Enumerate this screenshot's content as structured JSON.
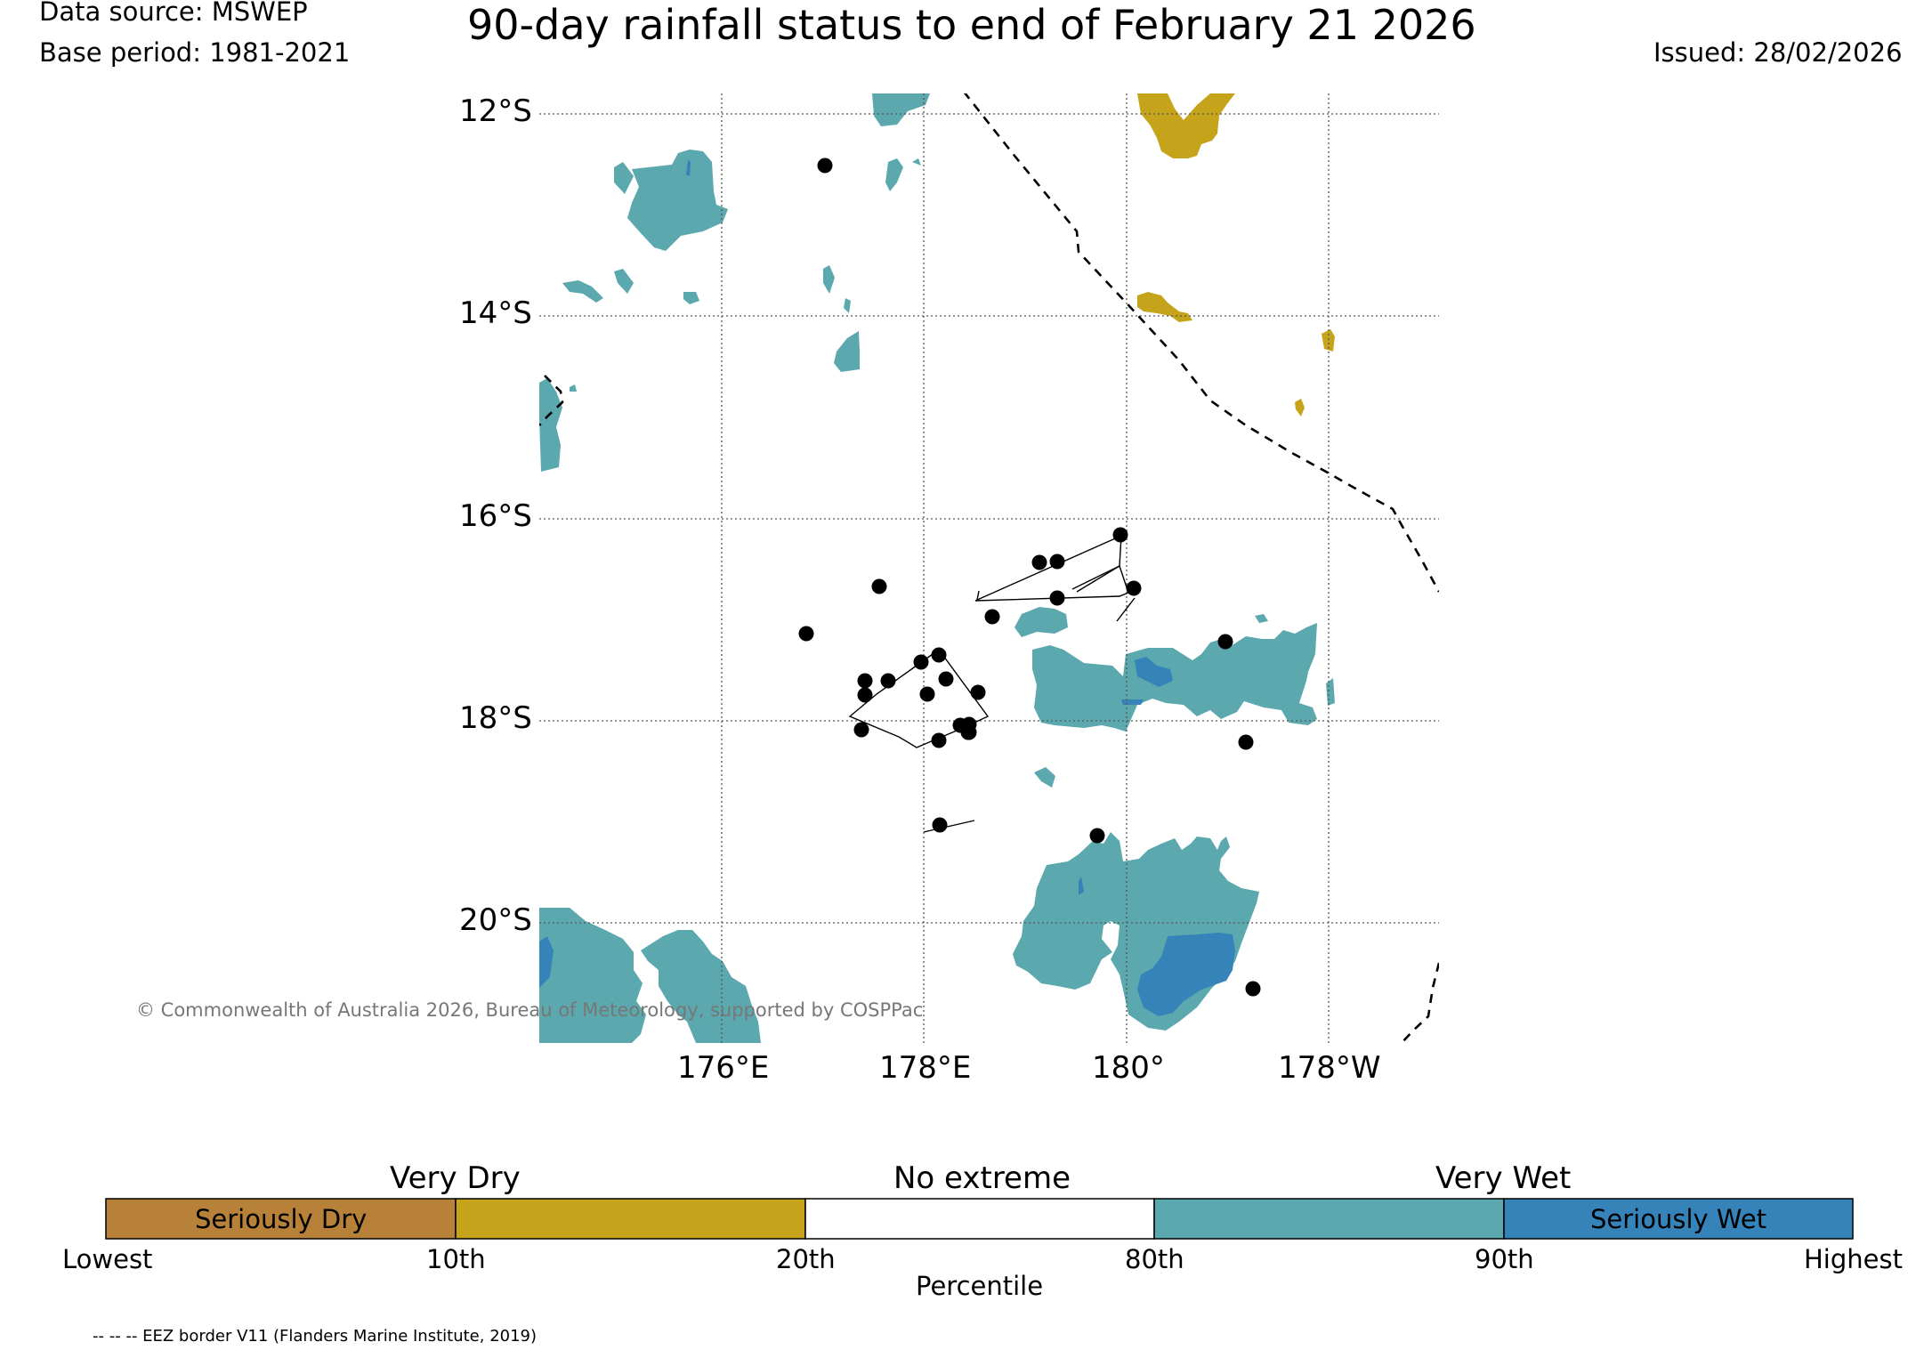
{
  "header": {
    "data_source": "Data source: MSWEP",
    "base_period": "Base period: 1981-2021",
    "title": "90-day rainfall status to end of February 21 2026",
    "issued": "Issued: 28/02/2026"
  },
  "map": {
    "lat_labels": [
      "12°S",
      "14°S",
      "16°S",
      "18°S",
      "20°S"
    ],
    "lon_labels": [
      "176°E",
      "178°E",
      "180°",
      "178°W"
    ],
    "copyright": "© Commonwealth of Australia 2026, Bureau of Meteorology, supported by COSPPac",
    "eez_note": "-- -- -- EEZ border V11 (Flanders Marine Institute, 2019)",
    "colors": {
      "seriously_dry": "#b8813a",
      "very_dry": "#c5a41b",
      "no_extreme": "#ffffff",
      "very_wet": "#5ba8ae",
      "seriously_wet": "#3583b9"
    }
  },
  "legend": {
    "captions": [
      "Very Dry",
      "No extreme",
      "Very Wet"
    ],
    "boxes": [
      "Seriously Dry",
      "",
      "",
      "",
      "Seriously Wet"
    ],
    "ticks": [
      "Lowest",
      "10th",
      "20th",
      "80th",
      "90th",
      "Highest"
    ],
    "axis_label": "Percentile"
  }
}
